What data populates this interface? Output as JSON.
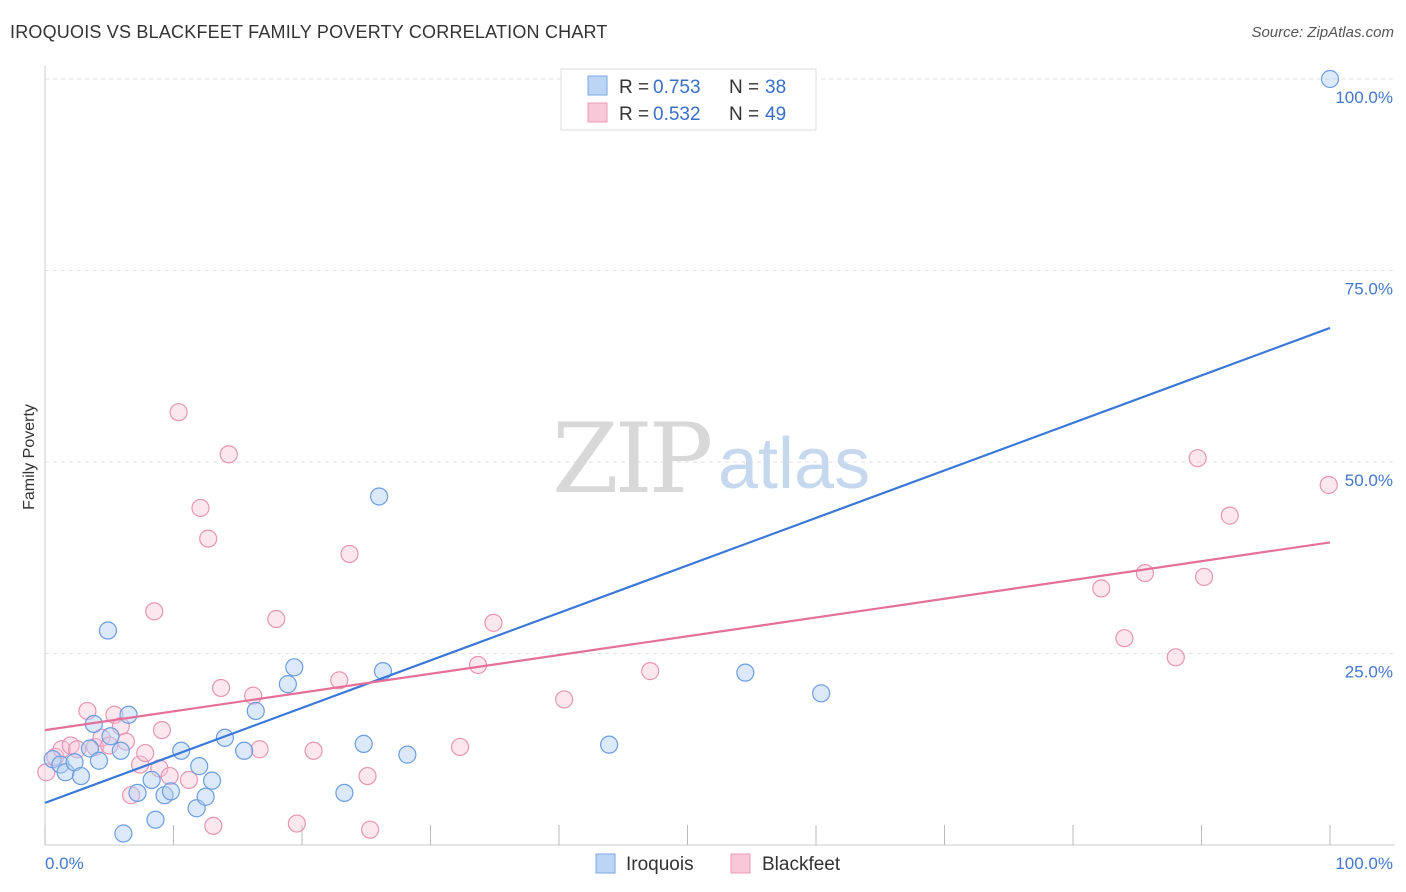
{
  "title": "IROQUOIS VS BLACKFEET FAMILY POVERTY CORRELATION CHART",
  "source": "Source: ZipAtlas.com",
  "watermark": {
    "part1": "ZIP",
    "part2": "atlas"
  },
  "legend": {
    "iroquois": {
      "r_label": "R =",
      "r_value": "0.753",
      "n_label": "N =",
      "n_value": "38"
    },
    "blackfeet": {
      "r_label": "R =",
      "r_value": "0.532",
      "n_label": "N =",
      "n_value": "49"
    }
  },
  "chart_data": {
    "type": "scatter",
    "ylabel": "Family Poverty",
    "x_tick_labels": [
      "0.0%",
      "100.0%"
    ],
    "y_tick_labels": [
      "25.0%",
      "50.0%",
      "75.0%",
      "100.0%"
    ],
    "xlim": [
      0,
      100
    ],
    "ylim": [
      0,
      100
    ],
    "grid": true,
    "legend_position": "top-center",
    "colors": {
      "iroquois": "#3a78d8",
      "blackfeet": "#e4709a"
    },
    "series": [
      {
        "name": "Iroquois",
        "trend": {
          "x": [
            0,
            100
          ],
          "y": [
            5.5,
            67.5
          ]
        },
        "points": [
          [
            0.6,
            11.2
          ],
          [
            1.2,
            10.5
          ],
          [
            1.6,
            9.5
          ],
          [
            2.3,
            10.8
          ],
          [
            2.8,
            9.0
          ],
          [
            3.5,
            12.6
          ],
          [
            3.8,
            15.8
          ],
          [
            4.2,
            11.0
          ],
          [
            4.9,
            28.0
          ],
          [
            5.1,
            14.2
          ],
          [
            5.9,
            12.3
          ],
          [
            6.5,
            17.0
          ],
          [
            6.1,
            1.5
          ],
          [
            7.2,
            6.8
          ],
          [
            8.3,
            8.5
          ],
          [
            8.6,
            3.3
          ],
          [
            9.3,
            6.5
          ],
          [
            9.8,
            7.0
          ],
          [
            10.6,
            12.3
          ],
          [
            11.8,
            4.8
          ],
          [
            12.0,
            10.3
          ],
          [
            12.5,
            6.3
          ],
          [
            13.0,
            8.4
          ],
          [
            14.0,
            14.0
          ],
          [
            15.5,
            12.3
          ],
          [
            16.4,
            17.5
          ],
          [
            18.9,
            21.0
          ],
          [
            19.4,
            23.2
          ],
          [
            23.3,
            6.8
          ],
          [
            24.8,
            13.2
          ],
          [
            26.0,
            45.5
          ],
          [
            26.3,
            22.7
          ],
          [
            28.2,
            11.8
          ],
          [
            43.9,
            13.1
          ],
          [
            54.5,
            22.5
          ],
          [
            60.4,
            19.8
          ],
          [
            100.0,
            100.0
          ]
        ]
      },
      {
        "name": "Blackfeet",
        "trend": {
          "x": [
            0,
            100
          ],
          "y": [
            15.0,
            39.5
          ]
        },
        "points": [
          [
            0.1,
            9.5
          ],
          [
            0.8,
            11.5
          ],
          [
            1.3,
            12.5
          ],
          [
            2.0,
            13.0
          ],
          [
            2.5,
            12.5
          ],
          [
            3.3,
            17.5
          ],
          [
            3.9,
            12.8
          ],
          [
            4.4,
            14.0
          ],
          [
            5.0,
            13.0
          ],
          [
            5.4,
            17.0
          ],
          [
            5.9,
            15.5
          ],
          [
            6.3,
            13.5
          ],
          [
            6.7,
            6.5
          ],
          [
            7.4,
            10.5
          ],
          [
            7.8,
            12.0
          ],
          [
            8.5,
            30.5
          ],
          [
            8.9,
            10.0
          ],
          [
            9.1,
            15.0
          ],
          [
            9.7,
            9.0
          ],
          [
            10.4,
            56.5
          ],
          [
            11.2,
            8.5
          ],
          [
            12.1,
            44.0
          ],
          [
            12.7,
            40.0
          ],
          [
            13.1,
            2.5
          ],
          [
            13.7,
            20.5
          ],
          [
            14.3,
            51.0
          ],
          [
            16.2,
            19.5
          ],
          [
            16.7,
            12.5
          ],
          [
            18.0,
            29.5
          ],
          [
            19.6,
            2.8
          ],
          [
            20.9,
            12.3
          ],
          [
            22.9,
            21.5
          ],
          [
            23.7,
            38.0
          ],
          [
            25.1,
            9.0
          ],
          [
            25.3,
            2.0
          ],
          [
            32.3,
            12.8
          ],
          [
            33.7,
            23.5
          ],
          [
            34.9,
            29.0
          ],
          [
            40.4,
            19.0
          ],
          [
            47.1,
            22.7
          ],
          [
            82.2,
            33.5
          ],
          [
            84.0,
            27.0
          ],
          [
            85.6,
            35.5
          ],
          [
            88.0,
            24.5
          ],
          [
            89.7,
            50.5
          ],
          [
            90.2,
            35.0
          ],
          [
            92.2,
            43.0
          ],
          [
            99.9,
            47.0
          ]
        ]
      }
    ]
  }
}
